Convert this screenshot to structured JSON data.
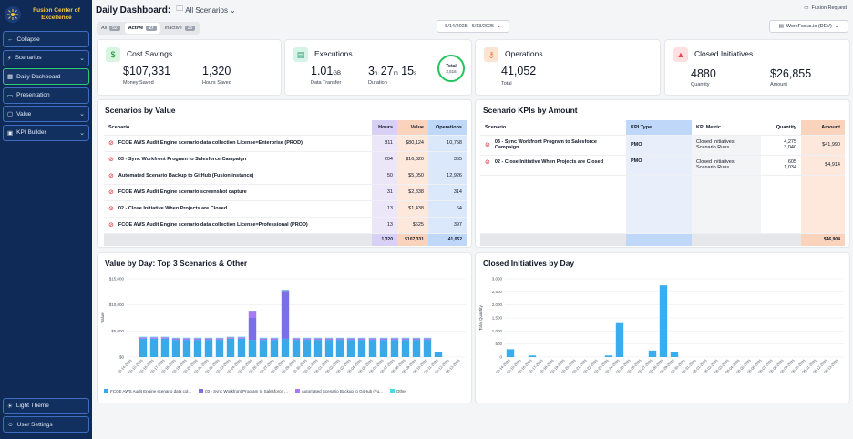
{
  "sidebar": {
    "brand": "Fusion Center of Excellence",
    "items": [
      {
        "label": "Collapse",
        "icon": "arrow-left-icon"
      },
      {
        "label": "Scenarios",
        "icon": "scenarios-icon"
      },
      {
        "label": "Daily Dashboard",
        "icon": "dashboard-icon"
      },
      {
        "label": "Presentation",
        "icon": "presentation-icon"
      },
      {
        "label": "Value",
        "icon": "value-icon"
      },
      {
        "label": "KPI Builder",
        "icon": "kpi-icon"
      }
    ],
    "bottom": [
      {
        "label": "Light Theme",
        "icon": "theme-icon"
      },
      {
        "label": "User Settings",
        "icon": "user-settings-icon"
      }
    ]
  },
  "header": {
    "title": "Daily Dashboard:",
    "scenario_filter": "All Scenarios",
    "date_range": "5/14/2025 - 6/13/2025",
    "fusion_request": "Fusion Request",
    "environment": "WorkFocus.io (DEV)"
  },
  "tabs": [
    {
      "label": "All",
      "count": "52"
    },
    {
      "label": "Active",
      "count": "27"
    },
    {
      "label": "Inactive",
      "count": "25"
    }
  ],
  "kpis": {
    "cost_savings": {
      "title": "Cost Savings",
      "money": "$107,331",
      "money_label": "Money Saved",
      "hours": "1,320",
      "hours_label": "Hours Saved"
    },
    "executions": {
      "title": "Executions",
      "transfer": "1.01",
      "transfer_unit": "GB",
      "transfer_label": "Data Transfer",
      "dur_h": "3",
      "dur_m": "27",
      "dur_s": "15",
      "unit_h": "h",
      "unit_m": "m",
      "unit_s": "s",
      "duration_label": "Duration",
      "total_label": "Total",
      "total_value": "3,516"
    },
    "operations": {
      "title": "Operations",
      "value": "41,052",
      "label": "Total"
    },
    "closed": {
      "title": "Closed Initiatives",
      "quantity": "4880",
      "quantity_label": "Quantity",
      "amount": "$26,855",
      "amount_label": "Amount"
    }
  },
  "scenarios_by_value": {
    "title": "Scenarios by Value",
    "columns": [
      "Scenario",
      "Hours",
      "Value",
      "Operations"
    ],
    "rows": [
      {
        "name": "FCOE AWS Audit Engine scenario data collection License=Enterprise (PROD)",
        "hours": "811",
        "value": "$80,124",
        "ops": "10,758"
      },
      {
        "name": "03 - Sync Workfront Program to Salesforce Campaign",
        "hours": "204",
        "value": "$16,320",
        "ops": "355"
      },
      {
        "name": "Automated Scenario Backup to GitHub (Fusion instance)",
        "hours": "50",
        "value": "$5,050",
        "ops": "12,926"
      },
      {
        "name": "FCOE AWS Audit Engine scenario screenshot capture",
        "hours": "31",
        "value": "$2,838",
        "ops": "314"
      },
      {
        "name": "02 - Close Initiative When Projects are Closed",
        "hours": "13",
        "value": "$1,438",
        "ops": "64"
      },
      {
        "name": "FCOE AWS Audit Engine scenario data collection License=Professional (PROD)",
        "hours": "13",
        "value": "$625",
        "ops": "397"
      }
    ],
    "totals": {
      "hours": "1,320",
      "value": "$107,331",
      "ops": "41,052"
    }
  },
  "kpis_by_amount": {
    "title": "Scenario KPIs by Amount",
    "columns": [
      "Scenario",
      "KPI Type",
      "KPI Metric",
      "Quantity",
      "Amount"
    ],
    "rows": [
      {
        "name": "03 - Sync Workfront Program to Salesforce Campaign",
        "type": "PMO",
        "metrics": [
          "Closed Initiatives",
          "Scenario Runs"
        ],
        "quantities": [
          "4,275",
          "3,040"
        ],
        "amount": "$41,990"
      },
      {
        "name": "02 - Close Initiative When Projects are Closed",
        "type": "PMO",
        "metrics": [
          "Closed Initiatives",
          "Scenario Runs"
        ],
        "quantities": [
          "605",
          "1,034"
        ],
        "amount": "$4,914"
      }
    ],
    "total_amount": "$46,904"
  },
  "colors": {
    "s1": "#3aa9e8",
    "s2": "#7b6fe6",
    "s3": "#a67cf0",
    "s4": "#4dd8e8",
    "closed": "#38aef0"
  },
  "chart_data": [
    {
      "type": "bar",
      "title": "Value by Day: Top 3 Scenarios & Other",
      "ylabel": "Value",
      "ylim": [
        0,
        15000
      ],
      "yticks": [
        "$0",
        "$5,000",
        "$10,000",
        "$15,000"
      ],
      "categories": [
        "05-14-2025",
        "05-15-2025",
        "05-16-2025",
        "05-17-2025",
        "05-18-2025",
        "05-19-2025",
        "05-20-2025",
        "05-21-2025",
        "05-22-2025",
        "05-23-2025",
        "05-24-2025",
        "05-25-2025",
        "05-26-2025",
        "05-27-2025",
        "05-28-2025",
        "05-29-2025",
        "05-30-2025",
        "05-31-2025",
        "06-01-2025",
        "06-02-2025",
        "06-03-2025",
        "06-04-2025",
        "06-05-2025",
        "06-06-2025",
        "06-07-2025",
        "06-08-2025",
        "06-09-2025",
        "06-10-2025",
        "06-11-2025",
        "06-12-2025",
        "06-13-2025"
      ],
      "series": [
        {
          "name": "FCOE AWS Audit Engine scenario data col...",
          "values": [
            0,
            3500,
            3500,
            3500,
            3300,
            3300,
            3300,
            3300,
            3300,
            3500,
            3500,
            3300,
            3300,
            3300,
            3500,
            3300,
            3300,
            3300,
            3300,
            3300,
            3300,
            3300,
            3300,
            3300,
            3300,
            3300,
            3300,
            3300,
            900,
            0,
            0
          ]
        },
        {
          "name": "03 - Sync Workfront Program to Salesforce ...",
          "values": [
            0,
            0,
            0,
            0,
            0,
            0,
            0,
            0,
            0,
            0,
            0,
            4200,
            0,
            0,
            9000,
            0,
            0,
            0,
            0,
            0,
            0,
            0,
            0,
            0,
            0,
            0,
            0,
            0,
            0,
            0,
            0
          ]
        },
        {
          "name": "Automated Scenario Backup to GitHub (Fu...",
          "values": [
            0,
            300,
            300,
            300,
            300,
            300,
            300,
            300,
            300,
            300,
            300,
            1200,
            300,
            300,
            300,
            300,
            300,
            300,
            300,
            300,
            300,
            300,
            300,
            300,
            300,
            300,
            300,
            300,
            0,
            0,
            0
          ]
        },
        {
          "name": "Other",
          "values": [
            0,
            100,
            100,
            100,
            100,
            100,
            100,
            100,
            100,
            100,
            100,
            100,
            100,
            100,
            100,
            100,
            100,
            100,
            100,
            100,
            100,
            100,
            100,
            100,
            100,
            100,
            100,
            100,
            0,
            0,
            0
          ]
        }
      ]
    },
    {
      "type": "bar",
      "title": "Closed Initiatives by Day",
      "ylabel": "Total Quantity",
      "ylim": [
        0,
        3000
      ],
      "yticks": [
        "0",
        "500",
        "1,000",
        "1,500",
        "2,000",
        "2,500",
        "3,000"
      ],
      "categories": [
        "05-14-2025",
        "05-15-2025",
        "05-16-2025",
        "05-17-2025",
        "05-18-2025",
        "05-19-2025",
        "05-20-2025",
        "05-21-2025",
        "05-22-2025",
        "05-23-2025",
        "05-24-2025",
        "05-25-2025",
        "05-26-2025",
        "05-27-2025",
        "05-28-2025",
        "05-29-2025",
        "05-30-2025",
        "05-31-2025",
        "06-01-2025",
        "06-02-2025",
        "06-03-2025",
        "06-04-2025",
        "06-05-2025",
        "06-06-2025",
        "06-07-2025",
        "06-08-2025",
        "06-09-2025",
        "06-10-2025",
        "06-11-2025",
        "06-12-2025",
        "06-13-2025"
      ],
      "series": [
        {
          "name": "Closed Initiatives",
          "values": [
            300,
            0,
            60,
            0,
            0,
            0,
            0,
            0,
            0,
            60,
            1300,
            0,
            0,
            250,
            2750,
            200,
            0,
            0,
            0,
            0,
            0,
            0,
            0,
            0,
            0,
            0,
            0,
            0,
            0,
            0,
            0
          ]
        }
      ]
    }
  ]
}
